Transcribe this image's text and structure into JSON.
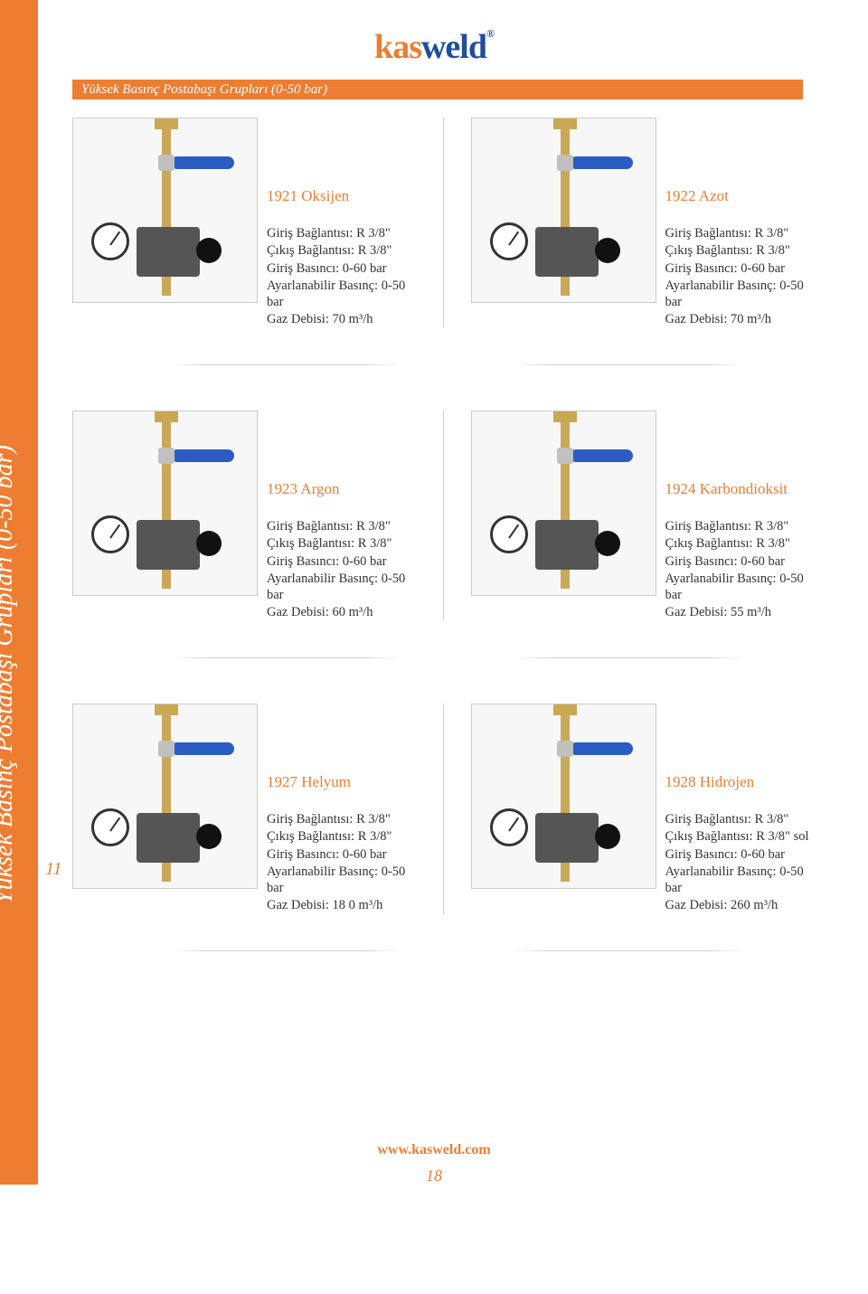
{
  "brand": {
    "part1": "kas",
    "part2": "weld",
    "reg": "®"
  },
  "banner_title": "Yüksek Basınç Postabaşı Grupları (0-50 bar)",
  "sidebar_title": "Yüksek Basınç Postabaşı Grupları (0-50 bar)",
  "side_page": "11",
  "footer_url": "www.kasweld.com",
  "footer_page": "18",
  "spec_labels": {
    "giris_bag": "Giriş Bağlantısı:",
    "cikis_bag": "Çıkış Bağlantısı:",
    "giris_bas": "Giriş Basıncı:",
    "ayar": "Ayarlanabilir Basınç:",
    "debi": "Gaz Debisi:"
  },
  "products": [
    {
      "title": "1921 Oksijen",
      "giris_bag": "R 3/8\"",
      "cikis_bag": "R 3/8\"",
      "giris_bas": "0-60 bar",
      "ayar": "0-50 bar",
      "debi": "70 m³/h"
    },
    {
      "title": "1922 Azot",
      "giris_bag": "R 3/8\"",
      "cikis_bag": "R 3/8\"",
      "giris_bas": "0-60 bar",
      "ayar": "0-50 bar",
      "debi": "70 m³/h"
    },
    {
      "title": "1923 Argon",
      "giris_bag": "R 3/8\"",
      "cikis_bag": "R 3/8\"",
      "giris_bas": "0-60 bar",
      "ayar": "0-50 bar",
      "debi": "60 m³/h"
    },
    {
      "title": "1924 Karbondioksit",
      "giris_bag": "R 3/8\"",
      "cikis_bag": "R 3/8\"",
      "giris_bas": "0-60 bar",
      "ayar": " 0-50 bar",
      "debi": "55 m³/h"
    },
    {
      "title": "1927 Helyum",
      "giris_bag": "R 3/8\"",
      "cikis_bag": "R 3/8\"",
      "giris_bas": "0-60 bar",
      "ayar": "0-50 bar",
      "debi": "18 0 m³/h"
    },
    {
      "title": "1928 Hidrojen",
      "giris_bag": "R 3/8\"",
      "cikis_bag": "R 3/8\" sol",
      "giris_bas": "0-60 bar",
      "ayar": "0-50 bar",
      "debi": "260 m³/h"
    }
  ],
  "colors": {
    "accent": "#ed7d31",
    "brand_blue": "#1f4e9c",
    "text": "#333333",
    "border": "#cccccc",
    "bg": "#ffffff"
  }
}
